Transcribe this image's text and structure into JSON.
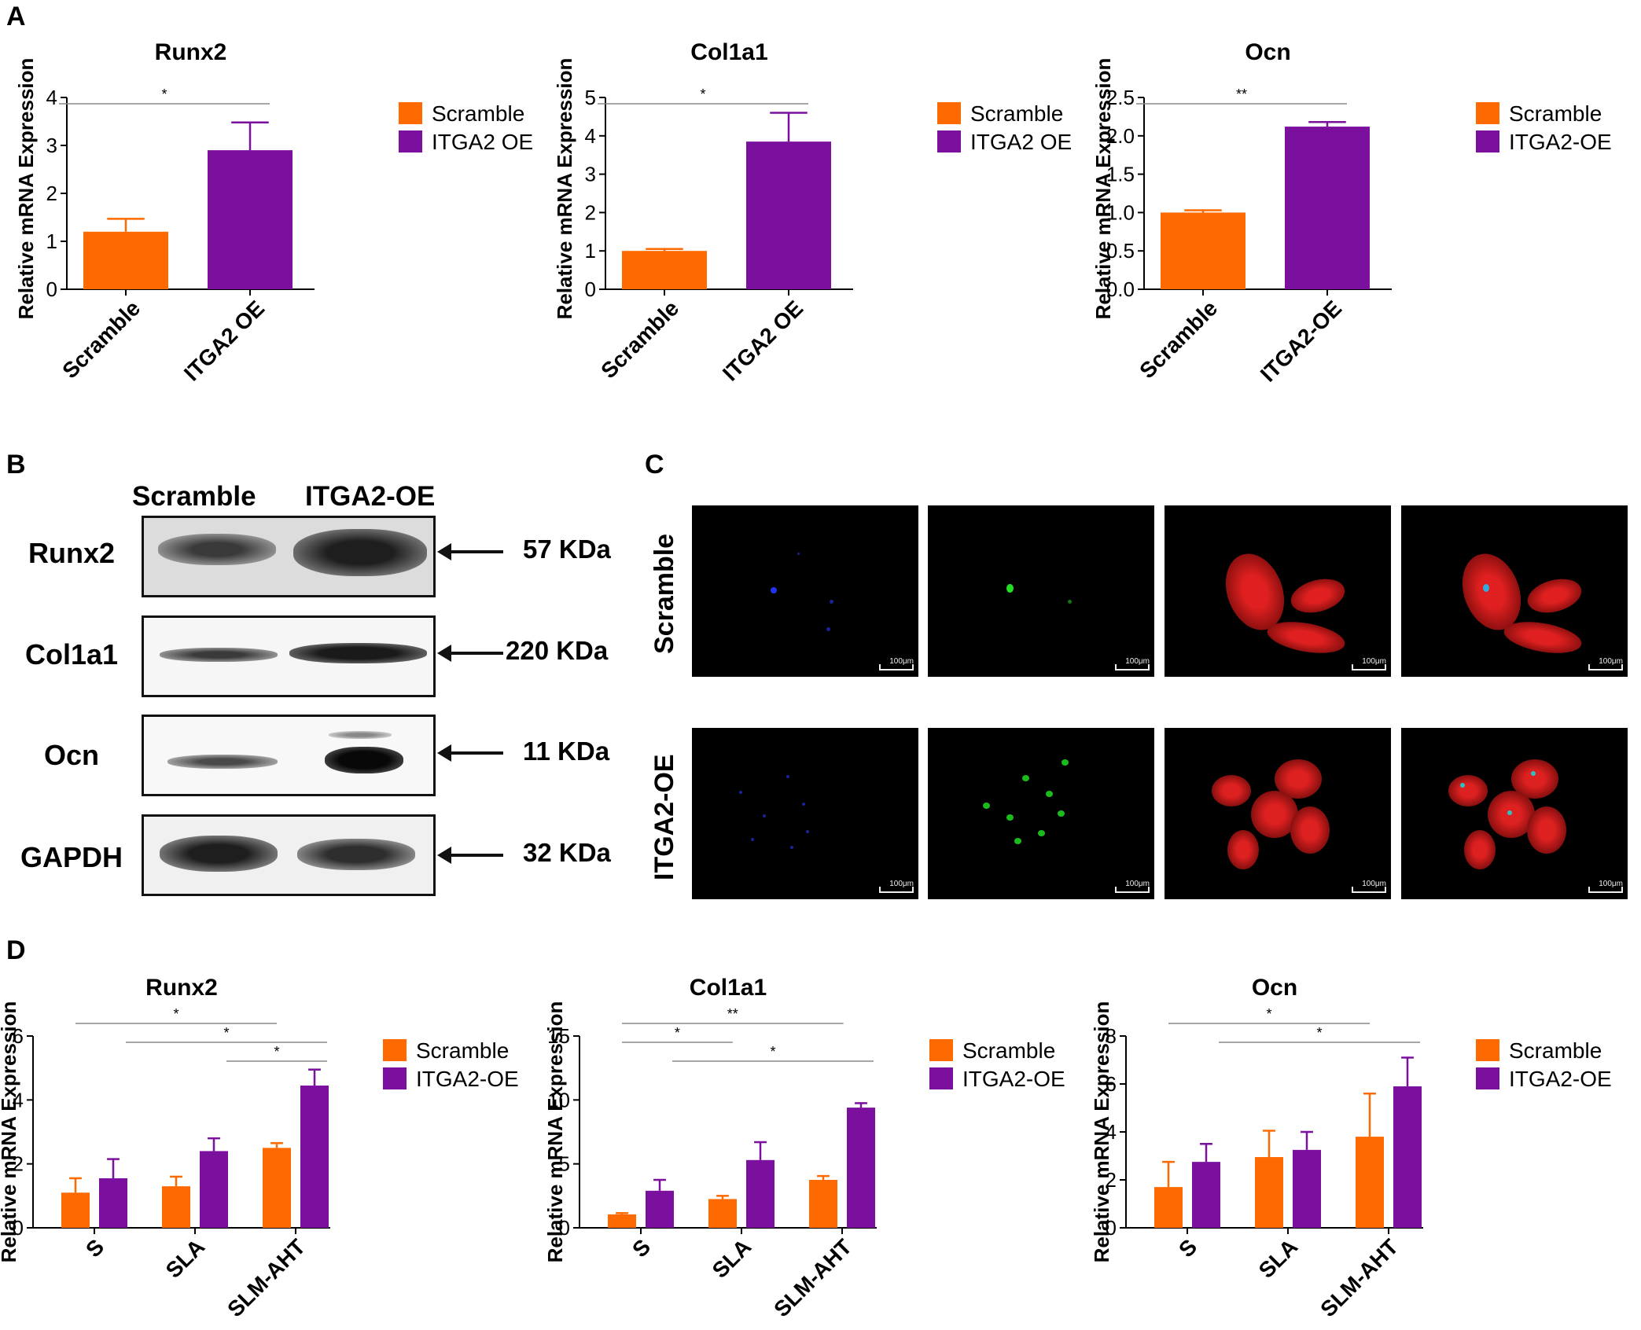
{
  "panels": {
    "A": "A",
    "B": "B",
    "C": "C",
    "D": "D"
  },
  "chart_data": [
    {
      "id": "A1",
      "type": "bar",
      "title": "Runx2",
      "ylabel": "Relative  mRNA Expression",
      "categories": [
        "Scramble",
        "ITGA2 OE"
      ],
      "values": [
        1.2,
        2.9
      ],
      "errors": [
        0.27,
        0.58
      ],
      "colors": [
        "#FF6A00",
        "#7B0F9E"
      ],
      "ylim": [
        0,
        4
      ],
      "yticks": [
        "0",
        "1",
        "2",
        "3",
        "4"
      ],
      "ytick_values": [
        0,
        1,
        2,
        3,
        4
      ],
      "legend": [
        "Scramble",
        "ITGA2 OE"
      ],
      "significance": [
        {
          "from": 0,
          "to": 1,
          "label": "*"
        }
      ]
    },
    {
      "id": "A2",
      "type": "bar",
      "title": "Col1a1",
      "ylabel": "Relative  mRNA Expression",
      "categories": [
        "Scramble",
        "ITGA2 OE"
      ],
      "values": [
        1.0,
        3.85
      ],
      "errors": [
        0.05,
        0.75
      ],
      "colors": [
        "#FF6A00",
        "#7B0F9E"
      ],
      "ylim": [
        0,
        5
      ],
      "yticks": [
        "0",
        "1",
        "2",
        "3",
        "4",
        "5"
      ],
      "ytick_values": [
        0,
        1,
        2,
        3,
        4,
        5
      ],
      "legend": [
        "Scramble",
        "ITGA2 OE"
      ],
      "significance": [
        {
          "from": 0,
          "to": 1,
          "label": "*"
        }
      ]
    },
    {
      "id": "A3",
      "type": "bar",
      "title": "Ocn",
      "ylabel": "Relative  mRNA Expression",
      "categories": [
        "Scramble",
        "ITGA2-OE"
      ],
      "values": [
        1.0,
        2.12
      ],
      "errors": [
        0.03,
        0.06
      ],
      "colors": [
        "#FF6A00",
        "#7B0F9E"
      ],
      "ylim": [
        0,
        2.5
      ],
      "yticks": [
        "0.0",
        "0.5",
        "1.0",
        "1.5",
        "2.0",
        "2.5"
      ],
      "ytick_values": [
        0,
        0.5,
        1,
        1.5,
        2,
        2.5
      ],
      "legend": [
        "Scramble",
        "ITGA2-OE"
      ],
      "significance": [
        {
          "from": 0,
          "to": 1,
          "label": "**"
        }
      ]
    },
    {
      "id": "D1",
      "type": "bar",
      "title": "Runx2",
      "ylabel": "Relative  mRNA Expression",
      "categories": [
        "S",
        "SLA",
        "SLM-AHT"
      ],
      "series": [
        {
          "name": "Scramble",
          "values": [
            1.1,
            1.3,
            2.5
          ],
          "errors": [
            0.45,
            0.3,
            0.15
          ],
          "color": "#FF6A00"
        },
        {
          "name": "ITGA2-OE",
          "values": [
            1.55,
            2.4,
            4.45
          ],
          "errors": [
            0.6,
            0.4,
            0.5
          ],
          "color": "#7B0F9E"
        }
      ],
      "ylim": [
        0,
        6
      ],
      "yticks": [
        "0",
        "2",
        "4",
        "6"
      ],
      "ytick_values": [
        0,
        2,
        4,
        6
      ],
      "significance": [
        {
          "from": 0,
          "to": 2,
          "label": "*",
          "level": 0
        },
        {
          "from": 0.5,
          "to": 2.5,
          "label": "*",
          "level": 1
        },
        {
          "from": 1.5,
          "to": 2.5,
          "label": "*",
          "level": 2
        }
      ]
    },
    {
      "id": "D2",
      "type": "bar",
      "title": "Col1a1",
      "ylabel": "Relative  mRNA Expression",
      "categories": [
        "S",
        "SLA",
        "SLM-AHT"
      ],
      "series": [
        {
          "name": "Scramble",
          "values": [
            1.05,
            2.25,
            3.75
          ],
          "errors": [
            0.1,
            0.25,
            0.3
          ],
          "color": "#FF6A00"
        },
        {
          "name": "ITGA2-OE",
          "values": [
            2.9,
            5.3,
            9.4
          ],
          "errors": [
            0.85,
            1.4,
            0.35
          ],
          "color": "#7B0F9E"
        }
      ],
      "ylim": [
        0,
        15
      ],
      "yticks": [
        "0",
        "5",
        "10",
        "15"
      ],
      "ytick_values": [
        0,
        5,
        10,
        15
      ],
      "significance": [
        {
          "from": 0,
          "to": 2.2,
          "label": "**",
          "level": 0
        },
        {
          "from": 0,
          "to": 1.1,
          "label": "*",
          "level": 1
        },
        {
          "from": 0.5,
          "to": 2.5,
          "label": "*",
          "level": 2
        }
      ]
    },
    {
      "id": "D3",
      "type": "bar",
      "title": "Ocn",
      "ylabel": "Relative  mRNA Expression",
      "categories": [
        "S",
        "SLA",
        "SLM-AHT"
      ],
      "series": [
        {
          "name": "Scramble",
          "values": [
            1.7,
            2.95,
            3.8
          ],
          "errors": [
            1.05,
            1.1,
            1.8
          ],
          "color": "#FF6A00"
        },
        {
          "name": "ITGA2-OE",
          "values": [
            2.75,
            3.25,
            5.9
          ],
          "errors": [
            0.75,
            0.75,
            1.2
          ],
          "color": "#7B0F9E"
        }
      ],
      "ylim": [
        0,
        8
      ],
      "yticks": [
        "0",
        "2",
        "4",
        "6",
        "8"
      ],
      "ytick_values": [
        0,
        2,
        4,
        6,
        8
      ],
      "significance": [
        {
          "from": 0,
          "to": 2,
          "label": "*",
          "level": 0
        },
        {
          "from": 0.5,
          "to": 2.5,
          "label": "*",
          "level": 1
        }
      ]
    }
  ],
  "western": {
    "columns": [
      "Scramble",
      "ITGA2-OE"
    ],
    "rows": [
      {
        "label": "Runx2",
        "kda": "57 KDa"
      },
      {
        "label": "Col1a1",
        "kda": "220 KDa"
      },
      {
        "label": "Ocn",
        "kda": "11 KDa"
      },
      {
        "label": "GAPDH",
        "kda": "32 KDa"
      }
    ]
  },
  "microscopy": {
    "rows": [
      "Scramble",
      "ITGA2-OE"
    ],
    "scale": "100μm"
  }
}
